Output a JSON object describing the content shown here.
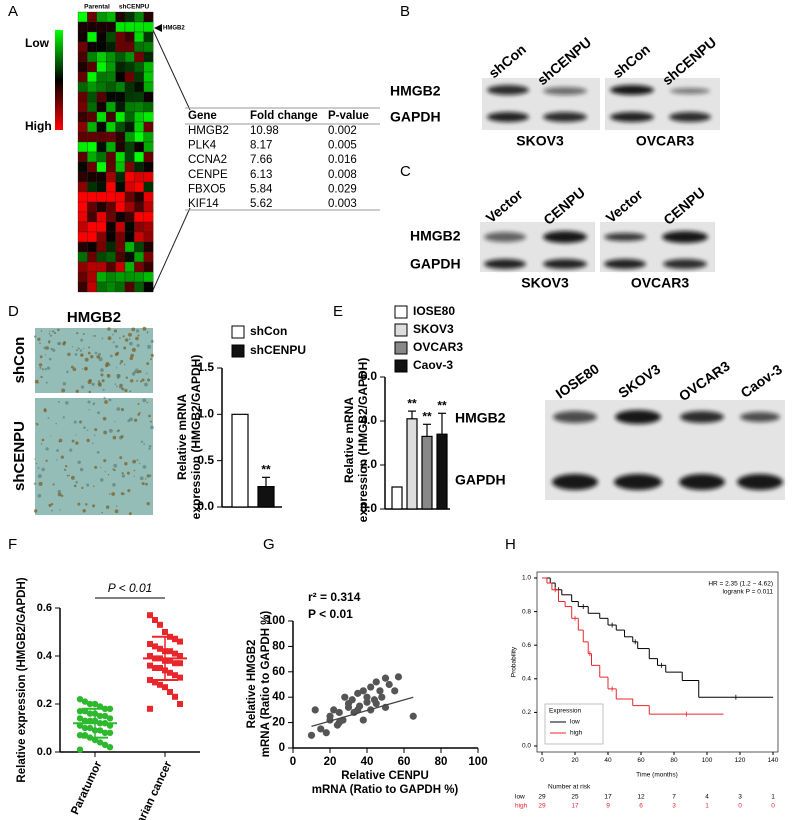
{
  "panel_labels": [
    "A",
    "B",
    "C",
    "D",
    "E",
    "F",
    "G",
    "H"
  ],
  "heatmap": {
    "low_label": "Low",
    "high_label": "High",
    "columns": [
      "Parental",
      "shCENPU"
    ],
    "marker": "HMGB2"
  },
  "table": {
    "header": [
      "Gene",
      "Fold change",
      "P-value"
    ],
    "rows": [
      [
        "HMGB2",
        10.98,
        0.002
      ],
      [
        "PLK4",
        8.17,
        0.005
      ],
      [
        "CCNA2",
        7.66,
        0.016
      ],
      [
        "CENPE",
        6.13,
        0.008
      ],
      [
        "FBXO5",
        5.84,
        0.029
      ],
      [
        "KIF14",
        5.62,
        0.003
      ]
    ]
  },
  "blot_b": {
    "columns": [
      "shCon",
      "shCENPU",
      "shCon",
      "shCENPU"
    ],
    "rows": [
      "HMGB2",
      "GAPDH"
    ],
    "cell_lines": [
      "SKOV3",
      "OVCAR3"
    ]
  },
  "blot_c": {
    "columns": [
      "Vector",
      "CENPU",
      "Vector",
      "CENPU"
    ],
    "rows": [
      "HMGB2",
      "GAPDH"
    ],
    "cell_lines": [
      "SKOV3",
      "OVCAR3"
    ]
  },
  "ihc_d": {
    "title": "HMGB2",
    "rows": [
      "shCon",
      "shCENPU"
    ]
  },
  "blot_e": {
    "columns": [
      "IOSE80",
      "SKOV3",
      "OVCAR3",
      "Caov-3"
    ],
    "rows": [
      "HMGB2",
      "GAPDH"
    ]
  },
  "chart_data": [
    {
      "type": "bar",
      "y_label": [
        "Relative mRNA",
        "expression (HMGB2/GAPDH)"
      ],
      "categories": [
        null
      ],
      "series": [
        {
          "name": "shCon",
          "color": "#ffffff",
          "values": [
            1.0
          ]
        },
        {
          "name": "shCENPU",
          "color": "#111111",
          "values": [
            0.22
          ],
          "errors": [
            0.1
          ],
          "annotation": "**"
        }
      ],
      "ylim": [
        0,
        1.5
      ],
      "yticks": [
        {
          "value": 0,
          "label": "0.0"
        },
        0.5,
        {
          "value": 1,
          "label": "1.0"
        },
        1.5
      ]
    },
    {
      "type": "bar",
      "y_label": [
        "Relative mRNA",
        "expression (HMGB2/GAPDH)"
      ],
      "categories": [
        null
      ],
      "series": [
        {
          "name": "IOSE80",
          "color": "#ffffff",
          "values": [
            1.0
          ]
        },
        {
          "name": "SKOV3",
          "color": "#dddddd",
          "values": [
            4.1
          ],
          "errors": [
            0.35
          ],
          "annotation": "**"
        },
        {
          "name": "OVCAR3",
          "color": "#888888",
          "values": [
            3.3
          ],
          "errors": [
            0.55
          ],
          "annotation": "**"
        },
        {
          "name": "Caov-3",
          "color": "#111111",
          "values": [
            3.4
          ],
          "errors": [
            0.95
          ],
          "annotation": "**"
        }
      ],
      "ylim": [
        0,
        6
      ],
      "yticks": [
        {
          "value": 0,
          "label": "0.0"
        },
        {
          "value": 2,
          "label": "2.0"
        },
        {
          "value": 4,
          "label": "4.0"
        },
        {
          "value": 6,
          "label": "6.0"
        }
      ]
    },
    {
      "type": "strip",
      "y_label": "Relative expression (HMGB2/GAPDH)",
      "annotation": "P < 0.01",
      "categories": [
        "Paratumor",
        "Ovarian cancer"
      ],
      "series": [
        {
          "color": "#2eb82e",
          "marker": "circle",
          "mean": 0.12,
          "sd": 0.06,
          "values": [
            0.22,
            0.21,
            0.2,
            0.2,
            0.19,
            0.18,
            0.18,
            0.17,
            0.17,
            0.16,
            0.16,
            0.15,
            0.15,
            0.14,
            0.14,
            0.13,
            0.13,
            0.13,
            0.12,
            0.12,
            0.11,
            0.11,
            0.1,
            0.1,
            0.09,
            0.09,
            0.08,
            0.08,
            0.07,
            0.07,
            0.06,
            0.05,
            0.04,
            0.03,
            0.02,
            0.01
          ]
        },
        {
          "color": "#e8262b",
          "marker": "square",
          "mean": 0.39,
          "sd": 0.09,
          "values": [
            0.57,
            0.55,
            0.53,
            0.5,
            0.48,
            0.47,
            0.46,
            0.45,
            0.44,
            0.43,
            0.42,
            0.42,
            0.41,
            0.4,
            0.4,
            0.39,
            0.39,
            0.38,
            0.38,
            0.37,
            0.37,
            0.36,
            0.35,
            0.35,
            0.34,
            0.33,
            0.32,
            0.31,
            0.3,
            0.29,
            0.28,
            0.27,
            0.25,
            0.23,
            0.2,
            0.18
          ]
        }
      ],
      "ylim": [
        0,
        0.6
      ],
      "yticks": [
        {
          "value": 0,
          "label": "0.0"
        },
        0.2,
        0.4,
        0.6
      ]
    },
    {
      "type": "scatter",
      "annotations": [
        "r² = 0.314",
        "P < 0.01"
      ],
      "y_label": [
        "Relative HMGB2",
        "mRNA (Ratio to GAPDH %)"
      ],
      "x_label": [
        "Relative CENPU",
        "mRNA (Ratio to GAPDH %)"
      ],
      "color": "#555555",
      "x": [
        10,
        12,
        15,
        18,
        20,
        20,
        22,
        24,
        25,
        25,
        27,
        28,
        30,
        30,
        32,
        33,
        35,
        35,
        36,
        38,
        38,
        40,
        40,
        42,
        42,
        44,
        45,
        45,
        47,
        48,
        50,
        50,
        52,
        55,
        57,
        65
      ],
      "y": [
        10,
        30,
        15,
        12,
        22,
        25,
        30,
        18,
        20,
        28,
        22,
        40,
        32,
        35,
        38,
        28,
        30,
        43,
        33,
        22,
        45,
        36,
        40,
        30,
        48,
        38,
        35,
        52,
        45,
        40,
        55,
        32,
        50,
        45,
        56,
        25
      ],
      "trend": {
        "x": [
          10,
          65
        ],
        "y": [
          17,
          40
        ]
      },
      "xlim": [
        0,
        100
      ],
      "ylim": [
        0,
        100
      ],
      "xticks": [
        0,
        20,
        40,
        60,
        80,
        100
      ],
      "yticks": [
        0,
        20,
        40,
        60,
        80,
        100
      ]
    },
    {
      "type": "step",
      "annotations": [
        "HR = 2.35 (1.2 − 4.62)",
        "logrank P = 0.011"
      ],
      "x_label": "Time (months)",
      "y_label": "Probability",
      "legend_title": "Expression",
      "risk_title": "Number at risk",
      "series": [
        {
          "name": "low",
          "color": "#000000",
          "x": [
            0,
            5,
            8,
            12,
            18,
            22,
            28,
            35,
            40,
            45,
            50,
            55,
            58,
            65,
            70,
            75,
            85,
            95,
            140
          ],
          "values": [
            1.0,
            0.97,
            0.93,
            0.9,
            0.86,
            0.83,
            0.79,
            0.76,
            0.72,
            0.69,
            0.65,
            0.62,
            0.58,
            0.52,
            0.48,
            0.44,
            0.39,
            0.29,
            0.29
          ],
          "risk": [
            29,
            25,
            17,
            12,
            7,
            4,
            3,
            1
          ]
        },
        {
          "name": "high",
          "color": "#e8262b",
          "x": [
            0,
            3,
            6,
            10,
            14,
            18,
            22,
            25,
            28,
            30,
            35,
            40,
            45,
            55,
            65,
            110
          ],
          "values": [
            1.0,
            0.97,
            0.93,
            0.86,
            0.83,
            0.76,
            0.69,
            0.62,
            0.55,
            0.48,
            0.41,
            0.34,
            0.28,
            0.24,
            0.19,
            0.19
          ],
          "risk": [
            29,
            17,
            9,
            6,
            3,
            1,
            0,
            0
          ]
        }
      ],
      "xlim": [
        0,
        140
      ],
      "ylim": [
        0,
        1
      ],
      "xticks": [
        0,
        20,
        40,
        60,
        80,
        100,
        120,
        140
      ],
      "yticks": [
        {
          "value": 0,
          "label": "0.0"
        },
        0.2,
        0.4,
        0.6,
        0.8,
        {
          "value": 1,
          "label": "1.0"
        }
      ]
    }
  ]
}
